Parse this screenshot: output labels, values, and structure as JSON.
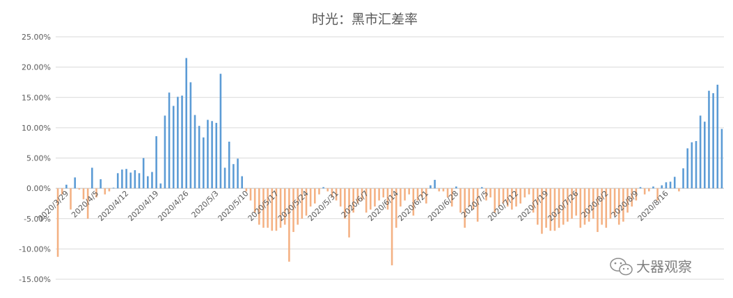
{
  "chart_data": {
    "type": "bar",
    "title": "时光：黑市汇差率",
    "xlabel": "",
    "ylabel": "",
    "ylim": [
      -0.15,
      0.25
    ],
    "yticks": [
      "25.00%",
      "20.00%",
      "15.00%",
      "10.00%",
      "5.00%",
      "0.00%",
      "-5.00%",
      "-10.00%",
      "-15.00%"
    ],
    "ytick_values": [
      0.25,
      0.2,
      0.15,
      0.1,
      0.05,
      0.0,
      -0.05,
      -0.1,
      -0.15
    ],
    "grid": true,
    "legend": "none",
    "positive_color": "#5b9bd5",
    "negative_color": "#f4b183",
    "x_tick_labels": [
      {
        "index": 0,
        "label": "2020/3/29"
      },
      {
        "index": 7,
        "label": "2020/4/5"
      },
      {
        "index": 14,
        "label": "2020/4/12"
      },
      {
        "index": 21,
        "label": "2020/4/19"
      },
      {
        "index": 28,
        "label": "2020/4/26"
      },
      {
        "index": 35,
        "label": "2020/5/3"
      },
      {
        "index": 42,
        "label": "2020/5/10"
      },
      {
        "index": 49,
        "label": "2020/5/17"
      },
      {
        "index": 56,
        "label": "2020/5/24"
      },
      {
        "index": 63,
        "label": "2020/5/31"
      },
      {
        "index": 70,
        "label": "2020/6/7"
      },
      {
        "index": 77,
        "label": "2020/6/14"
      },
      {
        "index": 84,
        "label": "2020/6/21"
      },
      {
        "index": 91,
        "label": "2020/6/28"
      },
      {
        "index": 98,
        "label": "2020/7/5"
      },
      {
        "index": 105,
        "label": "2020/7/12"
      },
      {
        "index": 112,
        "label": "2020/7/19"
      },
      {
        "index": 119,
        "label": "2020/7/26"
      },
      {
        "index": 126,
        "label": "2020/8/2"
      },
      {
        "index": 133,
        "label": "2020/8/9"
      },
      {
        "index": 140,
        "label": "2020/8/16"
      }
    ],
    "values": [
      -0.113,
      -0.01,
      0.006,
      -0.035,
      0.018,
      -0.002,
      -0.018,
      -0.05,
      0.034,
      -0.015,
      0.015,
      -0.01,
      -0.005,
      0.001,
      0.025,
      0.031,
      0.032,
      0.026,
      0.03,
      0.025,
      0.05,
      0.02,
      0.027,
      0.086,
      0.008,
      0.12,
      0.158,
      0.136,
      0.151,
      0.153,
      0.215,
      0.175,
      0.121,
      0.103,
      0.084,
      0.113,
      0.111,
      0.108,
      0.189,
      0.034,
      0.077,
      0.04,
      0.049,
      0.02,
      -0.005,
      -0.02,
      -0.04,
      -0.06,
      -0.065,
      -0.065,
      -0.07,
      -0.07,
      -0.065,
      -0.06,
      -0.121,
      -0.072,
      -0.06,
      -0.05,
      -0.045,
      -0.03,
      -0.025,
      -0.01,
      0.002,
      -0.005,
      -0.015,
      -0.02,
      -0.03,
      -0.05,
      -0.081,
      -0.04,
      -0.025,
      -0.02,
      -0.04,
      -0.035,
      -0.03,
      -0.02,
      -0.015,
      -0.035,
      -0.127,
      -0.065,
      -0.03,
      -0.02,
      -0.01,
      -0.045,
      -0.02,
      -0.015,
      -0.025,
      0.005,
      0.014,
      -0.005,
      -0.005,
      -0.015,
      -0.03,
      0.003,
      -0.04,
      -0.065,
      -0.03,
      -0.035,
      -0.055,
      0.002,
      -0.02,
      -0.015,
      -0.04,
      -0.03,
      -0.025,
      -0.03,
      -0.035,
      -0.03,
      -0.025,
      -0.015,
      -0.01,
      -0.04,
      -0.06,
      -0.075,
      -0.065,
      -0.07,
      -0.07,
      -0.065,
      -0.06,
      -0.055,
      -0.05,
      -0.045,
      -0.065,
      -0.06,
      -0.055,
      -0.05,
      -0.072,
      -0.06,
      -0.065,
      -0.05,
      -0.045,
      -0.06,
      -0.055,
      -0.04,
      -0.03,
      -0.02,
      0.002,
      -0.01,
      -0.005,
      0.003,
      -0.02,
      0.005,
      0.01,
      0.011,
      0.019,
      -0.005,
      0.033,
      0.066,
      0.076,
      0.078,
      0.12,
      0.11,
      0.161,
      0.157,
      0.171,
      0.098
    ]
  },
  "watermark": {
    "icon": "wechat-icon",
    "text": "大器观察"
  }
}
